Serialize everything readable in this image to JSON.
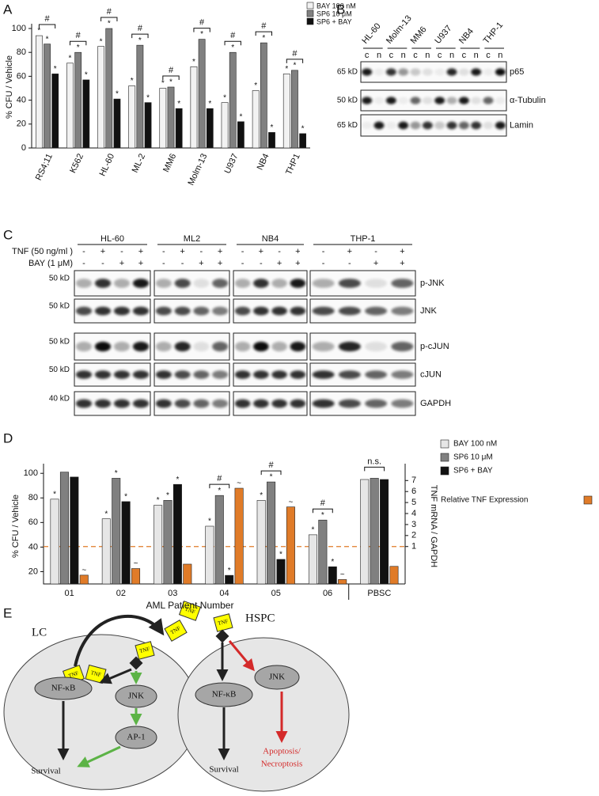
{
  "panel_labels": [
    "A",
    "B",
    "C",
    "D",
    "E"
  ],
  "chart_data": [
    {
      "type": "bar",
      "y_label": "% CFU / Vehicle",
      "categories": [
        "RS4;11",
        "K562",
        "HL-60",
        "ML-2",
        "MM6",
        "Molm-13",
        "U937",
        "NB4",
        "THP1"
      ],
      "series": [
        {
          "name": "BAY 100 nM",
          "color": "#f2f2f2",
          "values": [
            94,
            71,
            85,
            52,
            50,
            68,
            38,
            48,
            62
          ],
          "sig": [
            "*",
            "*",
            "*",
            "*",
            "*",
            "*",
            "*",
            "*",
            "*"
          ]
        },
        {
          "name": "SP6 10 μM",
          "color": "#808080",
          "values": [
            87,
            80,
            100,
            86,
            51,
            91,
            80,
            88,
            65
          ],
          "sig": [
            "*",
            "*",
            "*",
            "*",
            "*",
            "*",
            "*",
            "*",
            "*"
          ]
        },
        {
          "name": "SP6 + BAY",
          "color": "#111111",
          "values": [
            62,
            57,
            41,
            38,
            33,
            33,
            22,
            13,
            12
          ],
          "sig": [
            "*",
            "*",
            "*",
            "*",
            "*",
            "*",
            "*",
            "*",
            "*"
          ]
        }
      ],
      "brackets": [
        "#",
        "#",
        "#",
        "#",
        "#",
        "#",
        "#",
        "#",
        "#"
      ],
      "ylim": [
        0,
        100
      ],
      "yticks": [
        0,
        20,
        40,
        60,
        80,
        100
      ],
      "legend": "top-right"
    },
    {
      "type": "bar",
      "x_label": "AML Patient Number",
      "y_label": "% CFU / Vehicle",
      "y2_label": "TNF mRNA / GAPDH",
      "categories": [
        "01",
        "02",
        "03",
        "04",
        "05",
        "06",
        "PBSC"
      ],
      "series": [
        {
          "name": "BAY 100 nM",
          "color": "#e6e6e6",
          "values": [
            79,
            63,
            74,
            57,
            78,
            50,
            95
          ],
          "sig": [
            "*",
            "*",
            "*",
            "*",
            "*",
            "*",
            null
          ]
        },
        {
          "name": "SP6 10 μM",
          "color": "#808080",
          "values": [
            101,
            96,
            78,
            82,
            93,
            62,
            96
          ],
          "sig": [
            null,
            "*",
            "*",
            "*",
            "*",
            "*",
            null
          ]
        },
        {
          "name": "SP6 + BAY",
          "color": "#111111",
          "values": [
            97,
            77,
            91,
            17,
            30,
            24,
            95
          ],
          "sig": [
            null,
            "*",
            "*",
            "*",
            "*",
            "*",
            null
          ]
        },
        {
          "name": "Relative TNF Expression",
          "color": "#e07b28",
          "axis": "y2",
          "values": [
            -1.6,
            -1.0,
            -0.6,
            6.3,
            4.6,
            -2.0,
            -0.8
          ],
          "sig": [
            "~",
            "~",
            null,
            "~",
            "~",
            "~",
            null
          ]
        }
      ],
      "brackets": [
        null,
        null,
        null,
        "#",
        "#",
        "#",
        "n.s."
      ],
      "ylim": [
        10,
        104
      ],
      "yticks": [
        20,
        40,
        60,
        80,
        100
      ],
      "y2lim": [
        -2.4,
        8.1
      ],
      "y2ticks": [
        1,
        2,
        3,
        4,
        5,
        6,
        7
      ],
      "reference_y2": 1,
      "legend": "right"
    }
  ],
  "blot_b": {
    "lanes": [
      "HL-60",
      "Molm-13",
      "MM6",
      "U937",
      "NB4",
      "THP-1"
    ],
    "fractions": [
      "c",
      "n"
    ],
    "rows": [
      {
        "marker": "65 kD",
        "label": "p65"
      },
      {
        "marker": "50 kD",
        "label": "α-Tubulin"
      },
      {
        "marker": "65 kD",
        "label": "Lamin"
      }
    ]
  },
  "blot_c": {
    "groups": [
      "HL-60",
      "ML2",
      "NB4",
      "THP-1"
    ],
    "treatments": [
      {
        "label": "TNF (50 ng/ml )",
        "signs": [
          "-",
          "+",
          "-",
          "+"
        ]
      },
      {
        "label": "BAY (1 μM)",
        "signs": [
          "-",
          "-",
          "+",
          "+"
        ]
      }
    ],
    "rows": [
      {
        "marker": "50 kD",
        "label": "p-JNK"
      },
      {
        "marker": "50 kD",
        "label": "JNK"
      },
      {
        "marker": "50 kD",
        "label": "p-cJUN"
      },
      {
        "marker": "50 kD",
        "label": "cJUN"
      },
      {
        "marker": "40 kD",
        "label": "GAPDH"
      }
    ]
  },
  "diagram": {
    "ligand": "TNF",
    "left": {
      "label": "LC",
      "nodes": [
        "NF-κB",
        "JNK",
        "AP-1"
      ],
      "outcome": "Survival"
    },
    "right": {
      "label": "HSPC",
      "nodes": [
        "NF-κB",
        "JNK"
      ],
      "outcome": "Survival",
      "death": [
        "Apoptosis/",
        "Necroptosis"
      ]
    }
  }
}
